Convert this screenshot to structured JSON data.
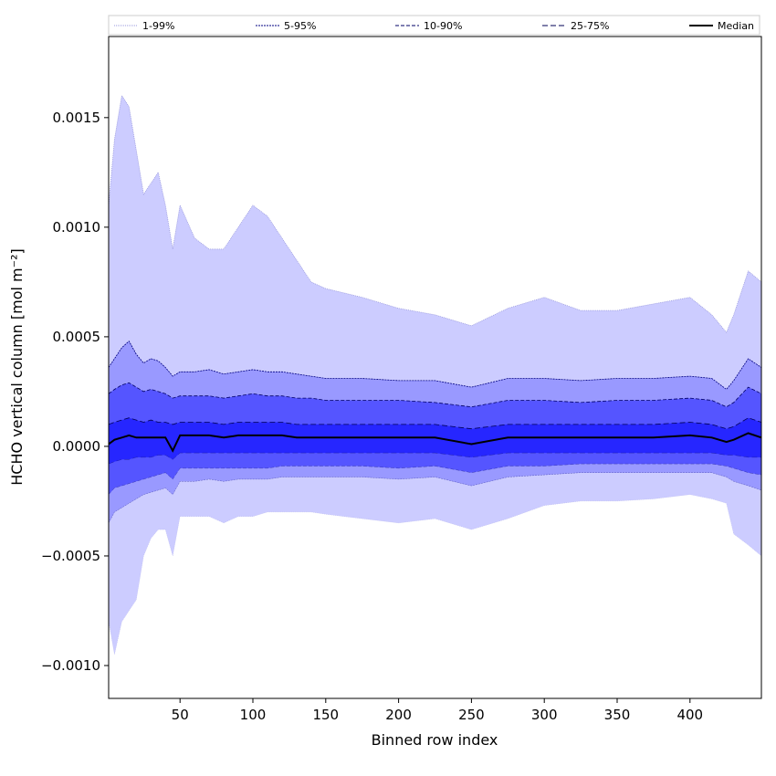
{
  "chart_data": {
    "type": "area",
    "title": "",
    "xlabel": "Binned row index",
    "ylabel": "HCHO vertical column [mol m⁻²]",
    "xlim": [
      1,
      449
    ],
    "ylim": [
      -0.00115,
      0.00187
    ],
    "xticks": [
      50,
      100,
      150,
      200,
      250,
      300,
      350,
      400
    ],
    "xtick_labels": [
      "50",
      "100",
      "150",
      "200",
      "250",
      "300",
      "350",
      "400"
    ],
    "yticks": [
      -0.001,
      -0.0005,
      0.0,
      0.0005,
      0.001,
      0.0015
    ],
    "ytick_labels": [
      "−0.0010",
      "−0.0005",
      "0.0000",
      "0.0005",
      "0.0010",
      "0.0015"
    ],
    "grid": false,
    "legend_position": "top",
    "x": [
      1,
      5,
      10,
      15,
      20,
      25,
      30,
      35,
      40,
      45,
      50,
      60,
      70,
      80,
      90,
      100,
      110,
      120,
      130,
      140,
      150,
      175,
      200,
      225,
      250,
      275,
      300,
      325,
      350,
      375,
      400,
      415,
      425,
      430,
      440,
      449
    ],
    "bands": [
      {
        "name": "1-99%",
        "color": "#ccccff",
        "line_color": "#9999dd",
        "dash": "1,1",
        "lower": [
          -0.0008,
          -0.00095,
          -0.0008,
          -0.00075,
          -0.0007,
          -0.0005,
          -0.00042,
          -0.00038,
          -0.00038,
          -0.0005,
          -0.00032,
          -0.00032,
          -0.00032,
          -0.00035,
          -0.00032,
          -0.00032,
          -0.0003,
          -0.0003,
          -0.0003,
          -0.0003,
          -0.00031,
          -0.00033,
          -0.00035,
          -0.00033,
          -0.00038,
          -0.00033,
          -0.00027,
          -0.00025,
          -0.00025,
          -0.00024,
          -0.00022,
          -0.00024,
          -0.00026,
          -0.0004,
          -0.00045,
          -0.0005
        ],
        "upper": [
          0.0011,
          0.0014,
          0.0016,
          0.00155,
          0.00135,
          0.00115,
          0.0012,
          0.00125,
          0.0011,
          0.0009,
          0.0011,
          0.00095,
          0.0009,
          0.0009,
          0.001,
          0.0011,
          0.00105,
          0.00095,
          0.00085,
          0.00075,
          0.00072,
          0.00068,
          0.00063,
          0.0006,
          0.00055,
          0.00063,
          0.00068,
          0.00062,
          0.00062,
          0.00065,
          0.00068,
          0.0006,
          0.00052,
          0.0006,
          0.0008,
          0.00075
        ]
      },
      {
        "name": "5-95%",
        "color": "#9999ff",
        "line_color": "#000080",
        "dash": "2,1",
        "lower": [
          -0.00035,
          -0.0003,
          -0.00028,
          -0.00026,
          -0.00024,
          -0.00022,
          -0.00021,
          -0.0002,
          -0.00019,
          -0.00022,
          -0.00016,
          -0.00016,
          -0.00015,
          -0.00016,
          -0.00015,
          -0.00015,
          -0.00015,
          -0.00014,
          -0.00014,
          -0.00014,
          -0.00014,
          -0.00014,
          -0.00015,
          -0.00014,
          -0.00018,
          -0.00014,
          -0.00013,
          -0.00012,
          -0.00012,
          -0.00012,
          -0.00012,
          -0.00012,
          -0.00014,
          -0.00016,
          -0.00018,
          -0.0002
        ],
        "upper": [
          0.00036,
          0.0004,
          0.00045,
          0.00048,
          0.00042,
          0.00038,
          0.0004,
          0.00039,
          0.00036,
          0.00032,
          0.00034,
          0.00034,
          0.00035,
          0.00033,
          0.00034,
          0.00035,
          0.00034,
          0.00034,
          0.00033,
          0.00032,
          0.00031,
          0.00031,
          0.0003,
          0.0003,
          0.00027,
          0.00031,
          0.00031,
          0.0003,
          0.00031,
          0.00031,
          0.00032,
          0.00031,
          0.00026,
          0.0003,
          0.0004,
          0.00036
        ]
      },
      {
        "name": "10-90%",
        "color": "#5555ff",
        "line_color": "#000066",
        "dash": "4,2",
        "lower": [
          -0.00022,
          -0.00019,
          -0.00018,
          -0.00017,
          -0.00016,
          -0.00015,
          -0.00014,
          -0.00013,
          -0.00012,
          -0.00015,
          -0.0001,
          -0.0001,
          -0.0001,
          -0.0001,
          -0.0001,
          -0.0001,
          -0.0001,
          -9e-05,
          -9e-05,
          -9e-05,
          -9e-05,
          -9e-05,
          -0.0001,
          -9e-05,
          -0.00012,
          -9e-05,
          -9e-05,
          -8e-05,
          -8e-05,
          -8e-05,
          -8e-05,
          -8e-05,
          -9e-05,
          -0.0001,
          -0.00012,
          -0.00013
        ],
        "upper": [
          0.00024,
          0.00026,
          0.00028,
          0.00029,
          0.00027,
          0.00025,
          0.00026,
          0.00025,
          0.00024,
          0.00022,
          0.00023,
          0.00023,
          0.00023,
          0.00022,
          0.00023,
          0.00024,
          0.00023,
          0.00023,
          0.00022,
          0.00022,
          0.00021,
          0.00021,
          0.00021,
          0.0002,
          0.00018,
          0.00021,
          0.00021,
          0.0002,
          0.00021,
          0.00021,
          0.00022,
          0.00021,
          0.00018,
          0.0002,
          0.00027,
          0.00024
        ]
      },
      {
        "name": "25-75%",
        "color": "#2626ff",
        "line_color": "#000055",
        "dash": "6,3",
        "lower": [
          -8e-05,
          -7e-05,
          -6e-05,
          -6e-05,
          -5e-05,
          -5e-05,
          -5e-05,
          -4e-05,
          -4e-05,
          -6e-05,
          -3e-05,
          -3e-05,
          -3e-05,
          -3e-05,
          -3e-05,
          -3e-05,
          -3e-05,
          -3e-05,
          -3e-05,
          -3e-05,
          -3e-05,
          -3e-05,
          -3e-05,
          -3e-05,
          -5e-05,
          -3e-05,
          -3e-05,
          -3e-05,
          -3e-05,
          -3e-05,
          -3e-05,
          -3e-05,
          -4e-05,
          -4e-05,
          -5e-05,
          -5e-05
        ],
        "upper": [
          0.0001,
          0.00011,
          0.00012,
          0.00013,
          0.00012,
          0.00011,
          0.00012,
          0.00011,
          0.00011,
          0.0001,
          0.00011,
          0.00011,
          0.00011,
          0.0001,
          0.00011,
          0.00011,
          0.00011,
          0.00011,
          0.0001,
          0.0001,
          0.0001,
          0.0001,
          0.0001,
          0.0001,
          8e-05,
          0.0001,
          0.0001,
          0.0001,
          0.0001,
          0.0001,
          0.00011,
          0.0001,
          8e-05,
          9e-05,
          0.00013,
          0.00011
        ]
      }
    ],
    "median": {
      "name": "Median",
      "color": "#000000",
      "values": [
        1e-05,
        3e-05,
        4e-05,
        5e-05,
        4e-05,
        4e-05,
        4e-05,
        4e-05,
        4e-05,
        -2e-05,
        5e-05,
        5e-05,
        5e-05,
        4e-05,
        5e-05,
        5e-05,
        5e-05,
        5e-05,
        4e-05,
        4e-05,
        4e-05,
        4e-05,
        4e-05,
        4e-05,
        1e-05,
        4e-05,
        4e-05,
        4e-05,
        4e-05,
        4e-05,
        5e-05,
        4e-05,
        2e-05,
        3e-05,
        6e-05,
        4e-05
      ]
    },
    "legend": [
      "1-99%",
      "5-95%",
      "10-90%",
      "25-75%",
      "Median"
    ]
  }
}
